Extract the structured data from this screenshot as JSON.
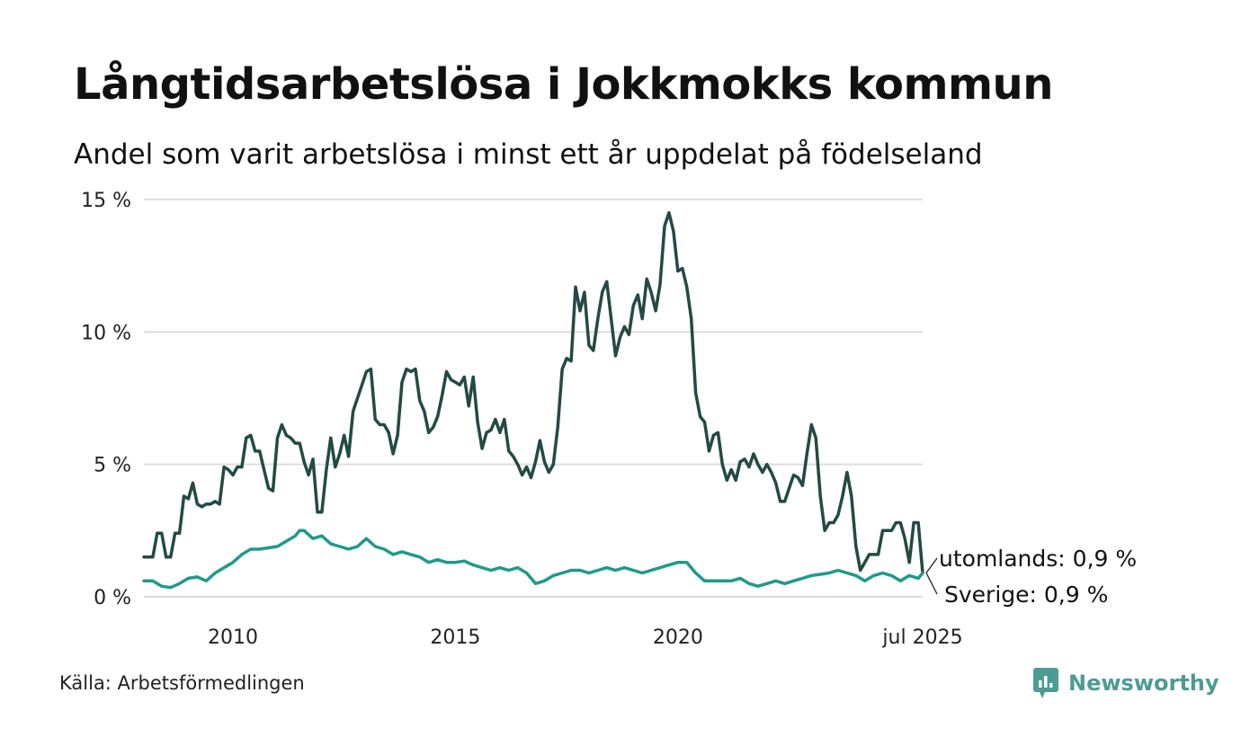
{
  "colors": {
    "utomlands": "#234a44",
    "sverige": "#1f9a8a",
    "grid": "#dddddd",
    "brand": "#4e9b93"
  },
  "chart_data": {
    "type": "line",
    "title": "Långtidsarbetslösa i Jokkmokks kommun",
    "subtitle": "Andel som varit arbetslösa i minst ett år uppdelat på födelseland",
    "y_ticks": [
      {
        "value": 0,
        "label": "0 %"
      },
      {
        "value": 5,
        "label": "5 %"
      },
      {
        "value": 10,
        "label": "10 %"
      },
      {
        "value": 15,
        "label": "15 %"
      }
    ],
    "x_ticks": [
      {
        "value": 2010.0,
        "label": "2010"
      },
      {
        "value": 2015.0,
        "label": "2015"
      },
      {
        "value": 2020.0,
        "label": "2020"
      },
      {
        "value": 2025.5,
        "label": "jul 2025"
      }
    ],
    "ylim": [
      0,
      15
    ],
    "xlim": [
      2008.0,
      2025.5
    ],
    "grid": true,
    "series": [
      {
        "name": "utomlands",
        "end_label": "utomlands: 0,9 %",
        "color": "#234a44",
        "points": [
          [
            2008.0,
            1.5
          ],
          [
            2008.1,
            1.5
          ],
          [
            2008.2,
            1.5
          ],
          [
            2008.3,
            2.4
          ],
          [
            2008.4,
            2.4
          ],
          [
            2008.5,
            1.5
          ],
          [
            2008.6,
            1.5
          ],
          [
            2008.7,
            2.4
          ],
          [
            2008.8,
            2.4
          ],
          [
            2008.9,
            3.8
          ],
          [
            2009.0,
            3.7
          ],
          [
            2009.1,
            4.3
          ],
          [
            2009.2,
            3.5
          ],
          [
            2009.3,
            3.4
          ],
          [
            2009.4,
            3.5
          ],
          [
            2009.5,
            3.5
          ],
          [
            2009.6,
            3.6
          ],
          [
            2009.7,
            3.5
          ],
          [
            2009.8,
            4.9
          ],
          [
            2009.9,
            4.8
          ],
          [
            2010.0,
            4.6
          ],
          [
            2010.1,
            4.9
          ],
          [
            2010.2,
            4.9
          ],
          [
            2010.3,
            6.0
          ],
          [
            2010.4,
            6.1
          ],
          [
            2010.5,
            5.5
          ],
          [
            2010.6,
            5.5
          ],
          [
            2010.7,
            4.8
          ],
          [
            2010.8,
            4.1
          ],
          [
            2010.9,
            4.0
          ],
          [
            2011.0,
            6.0
          ],
          [
            2011.1,
            6.5
          ],
          [
            2011.2,
            6.1
          ],
          [
            2011.3,
            6.0
          ],
          [
            2011.4,
            5.8
          ],
          [
            2011.5,
            5.8
          ],
          [
            2011.6,
            5.1
          ],
          [
            2011.7,
            4.6
          ],
          [
            2011.8,
            5.2
          ],
          [
            2011.9,
            3.2
          ],
          [
            2012.0,
            3.2
          ],
          [
            2012.1,
            4.8
          ],
          [
            2012.2,
            6.0
          ],
          [
            2012.3,
            4.9
          ],
          [
            2012.4,
            5.4
          ],
          [
            2012.5,
            6.1
          ],
          [
            2012.6,
            5.3
          ],
          [
            2012.7,
            7.0
          ],
          [
            2012.8,
            7.5
          ],
          [
            2012.9,
            8.0
          ],
          [
            2013.0,
            8.5
          ],
          [
            2013.1,
            8.6
          ],
          [
            2013.2,
            6.7
          ],
          [
            2013.3,
            6.5
          ],
          [
            2013.4,
            6.5
          ],
          [
            2013.5,
            6.2
          ],
          [
            2013.6,
            5.4
          ],
          [
            2013.7,
            6.1
          ],
          [
            2013.8,
            8.1
          ],
          [
            2013.9,
            8.6
          ],
          [
            2014.0,
            8.5
          ],
          [
            2014.1,
            8.6
          ],
          [
            2014.2,
            7.4
          ],
          [
            2014.3,
            7.0
          ],
          [
            2014.4,
            6.2
          ],
          [
            2014.5,
            6.4
          ],
          [
            2014.6,
            6.8
          ],
          [
            2014.7,
            7.6
          ],
          [
            2014.8,
            8.5
          ],
          [
            2014.9,
            8.2
          ],
          [
            2015.0,
            8.1
          ],
          [
            2015.1,
            8.0
          ],
          [
            2015.2,
            8.3
          ],
          [
            2015.3,
            7.2
          ],
          [
            2015.4,
            8.3
          ],
          [
            2015.5,
            6.6
          ],
          [
            2015.6,
            5.6
          ],
          [
            2015.7,
            6.2
          ],
          [
            2015.8,
            6.3
          ],
          [
            2015.9,
            6.7
          ],
          [
            2016.0,
            6.2
          ],
          [
            2016.1,
            6.7
          ],
          [
            2016.2,
            5.5
          ],
          [
            2016.3,
            5.3
          ],
          [
            2016.4,
            5.0
          ],
          [
            2016.5,
            4.6
          ],
          [
            2016.6,
            4.9
          ],
          [
            2016.7,
            4.5
          ],
          [
            2016.8,
            5.1
          ],
          [
            2016.9,
            5.9
          ],
          [
            2017.0,
            5.1
          ],
          [
            2017.1,
            4.7
          ],
          [
            2017.2,
            5.0
          ],
          [
            2017.3,
            6.4
          ],
          [
            2017.4,
            8.6
          ],
          [
            2017.5,
            9.0
          ],
          [
            2017.6,
            8.9
          ],
          [
            2017.7,
            11.7
          ],
          [
            2017.8,
            10.8
          ],
          [
            2017.9,
            11.5
          ],
          [
            2018.0,
            9.5
          ],
          [
            2018.1,
            9.3
          ],
          [
            2018.2,
            10.5
          ],
          [
            2018.3,
            11.5
          ],
          [
            2018.4,
            11.9
          ],
          [
            2018.5,
            10.5
          ],
          [
            2018.6,
            9.1
          ],
          [
            2018.7,
            9.8
          ],
          [
            2018.8,
            10.2
          ],
          [
            2018.9,
            9.9
          ],
          [
            2019.0,
            11.0
          ],
          [
            2019.1,
            11.4
          ],
          [
            2019.2,
            10.5
          ],
          [
            2019.3,
            12.0
          ],
          [
            2019.4,
            11.5
          ],
          [
            2019.5,
            10.8
          ],
          [
            2019.6,
            11.8
          ],
          [
            2019.7,
            14.0
          ],
          [
            2019.8,
            14.5
          ],
          [
            2019.9,
            13.8
          ],
          [
            2020.0,
            12.3
          ],
          [
            2020.1,
            12.4
          ],
          [
            2020.2,
            11.7
          ],
          [
            2020.3,
            10.5
          ],
          [
            2020.4,
            7.7
          ],
          [
            2020.5,
            6.8
          ],
          [
            2020.6,
            6.6
          ],
          [
            2020.7,
            5.5
          ],
          [
            2020.8,
            6.1
          ],
          [
            2020.9,
            6.2
          ],
          [
            2021.0,
            5.0
          ],
          [
            2021.1,
            4.4
          ],
          [
            2021.2,
            4.8
          ],
          [
            2021.3,
            4.4
          ],
          [
            2021.4,
            5.1
          ],
          [
            2021.5,
            5.2
          ],
          [
            2021.6,
            4.9
          ],
          [
            2021.7,
            5.4
          ],
          [
            2021.8,
            5.0
          ],
          [
            2021.9,
            4.7
          ],
          [
            2022.0,
            5.0
          ],
          [
            2022.1,
            4.7
          ],
          [
            2022.2,
            4.3
          ],
          [
            2022.3,
            3.6
          ],
          [
            2022.4,
            3.6
          ],
          [
            2022.5,
            4.1
          ],
          [
            2022.6,
            4.6
          ],
          [
            2022.7,
            4.5
          ],
          [
            2022.8,
            4.2
          ],
          [
            2022.9,
            5.4
          ],
          [
            2023.0,
            6.5
          ],
          [
            2023.1,
            6.0
          ],
          [
            2023.2,
            3.8
          ],
          [
            2023.3,
            2.5
          ],
          [
            2023.4,
            2.8
          ],
          [
            2023.5,
            2.8
          ],
          [
            2023.6,
            3.1
          ],
          [
            2023.7,
            3.8
          ],
          [
            2023.8,
            4.7
          ],
          [
            2023.9,
            3.8
          ],
          [
            2024.0,
            1.9
          ],
          [
            2024.1,
            1.0
          ],
          [
            2024.2,
            1.3
          ],
          [
            2024.3,
            1.6
          ],
          [
            2024.4,
            1.6
          ],
          [
            2024.5,
            1.6
          ],
          [
            2024.6,
            2.5
          ],
          [
            2024.7,
            2.5
          ],
          [
            2024.8,
            2.5
          ],
          [
            2024.9,
            2.8
          ],
          [
            2025.0,
            2.8
          ],
          [
            2025.1,
            2.2
          ],
          [
            2025.2,
            1.3
          ],
          [
            2025.3,
            2.8
          ],
          [
            2025.4,
            2.8
          ],
          [
            2025.5,
            0.9
          ]
        ]
      },
      {
        "name": "Sverige",
        "end_label": "Sverige: 0,9 %",
        "color": "#1f9a8a",
        "points": [
          [
            2008.0,
            0.6
          ],
          [
            2008.2,
            0.6
          ],
          [
            2008.4,
            0.4
          ],
          [
            2008.6,
            0.35
          ],
          [
            2008.8,
            0.5
          ],
          [
            2009.0,
            0.7
          ],
          [
            2009.2,
            0.75
          ],
          [
            2009.4,
            0.6
          ],
          [
            2009.6,
            0.9
          ],
          [
            2009.8,
            1.1
          ],
          [
            2010.0,
            1.3
          ],
          [
            2010.2,
            1.6
          ],
          [
            2010.4,
            1.8
          ],
          [
            2010.6,
            1.8
          ],
          [
            2010.8,
            1.85
          ],
          [
            2011.0,
            1.9
          ],
          [
            2011.2,
            2.1
          ],
          [
            2011.4,
            2.3
          ],
          [
            2011.5,
            2.5
          ],
          [
            2011.6,
            2.5
          ],
          [
            2011.8,
            2.2
          ],
          [
            2012.0,
            2.3
          ],
          [
            2012.2,
            2.0
          ],
          [
            2012.4,
            1.9
          ],
          [
            2012.6,
            1.8
          ],
          [
            2012.8,
            1.9
          ],
          [
            2013.0,
            2.2
          ],
          [
            2013.2,
            1.9
          ],
          [
            2013.4,
            1.8
          ],
          [
            2013.6,
            1.6
          ],
          [
            2013.8,
            1.7
          ],
          [
            2014.0,
            1.6
          ],
          [
            2014.2,
            1.5
          ],
          [
            2014.4,
            1.3
          ],
          [
            2014.6,
            1.4
          ],
          [
            2014.8,
            1.3
          ],
          [
            2015.0,
            1.3
          ],
          [
            2015.2,
            1.35
          ],
          [
            2015.4,
            1.2
          ],
          [
            2015.6,
            1.1
          ],
          [
            2015.8,
            1.0
          ],
          [
            2016.0,
            1.1
          ],
          [
            2016.2,
            1.0
          ],
          [
            2016.4,
            1.1
          ],
          [
            2016.6,
            0.9
          ],
          [
            2016.8,
            0.5
          ],
          [
            2017.0,
            0.6
          ],
          [
            2017.2,
            0.8
          ],
          [
            2017.4,
            0.9
          ],
          [
            2017.6,
            1.0
          ],
          [
            2017.8,
            1.0
          ],
          [
            2018.0,
            0.9
          ],
          [
            2018.2,
            1.0
          ],
          [
            2018.4,
            1.1
          ],
          [
            2018.6,
            1.0
          ],
          [
            2018.8,
            1.1
          ],
          [
            2019.0,
            1.0
          ],
          [
            2019.2,
            0.9
          ],
          [
            2019.4,
            1.0
          ],
          [
            2019.6,
            1.1
          ],
          [
            2019.8,
            1.2
          ],
          [
            2020.0,
            1.3
          ],
          [
            2020.2,
            1.3
          ],
          [
            2020.4,
            0.9
          ],
          [
            2020.6,
            0.6
          ],
          [
            2020.8,
            0.6
          ],
          [
            2021.0,
            0.6
          ],
          [
            2021.2,
            0.6
          ],
          [
            2021.4,
            0.7
          ],
          [
            2021.6,
            0.5
          ],
          [
            2021.8,
            0.4
          ],
          [
            2022.0,
            0.5
          ],
          [
            2022.2,
            0.6
          ],
          [
            2022.4,
            0.5
          ],
          [
            2022.6,
            0.6
          ],
          [
            2022.8,
            0.7
          ],
          [
            2023.0,
            0.8
          ],
          [
            2023.2,
            0.85
          ],
          [
            2023.4,
            0.9
          ],
          [
            2023.6,
            1.0
          ],
          [
            2023.8,
            0.9
          ],
          [
            2024.0,
            0.8
          ],
          [
            2024.2,
            0.6
          ],
          [
            2024.4,
            0.8
          ],
          [
            2024.6,
            0.9
          ],
          [
            2024.8,
            0.8
          ],
          [
            2025.0,
            0.6
          ],
          [
            2025.2,
            0.8
          ],
          [
            2025.4,
            0.7
          ],
          [
            2025.5,
            0.9
          ]
        ]
      }
    ]
  },
  "footer": {
    "source": "Källa: Arbetsförmedlingen",
    "brand": "Newsworthy",
    "brand_icon": "bar-chart-logo-icon"
  }
}
